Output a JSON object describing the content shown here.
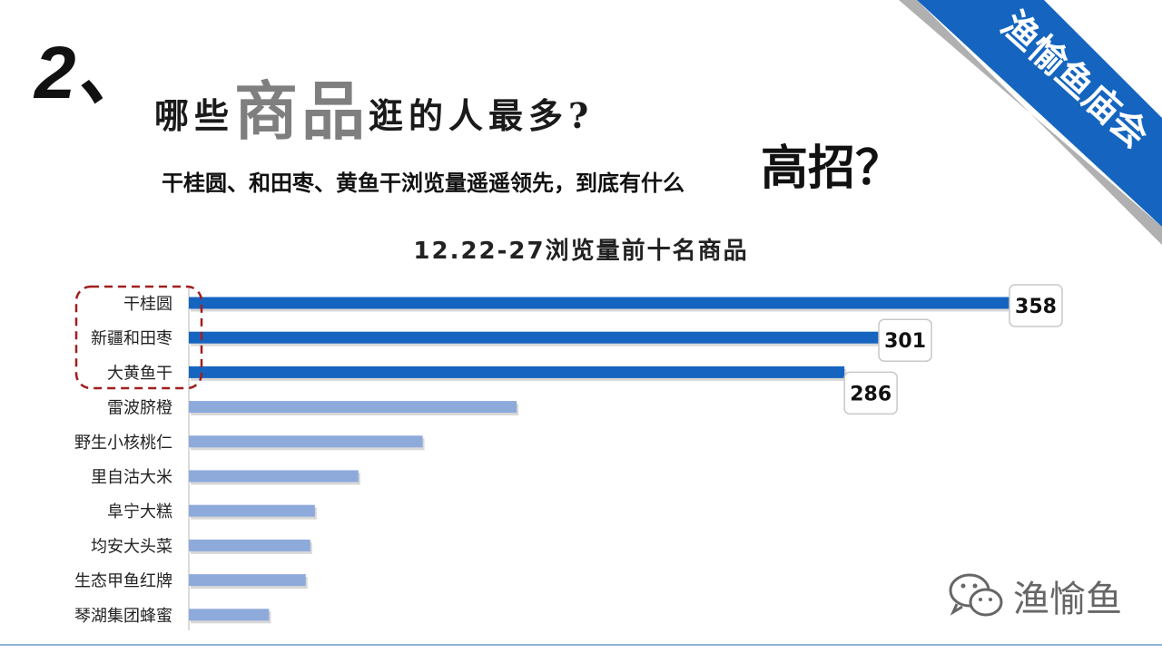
{
  "ribbon": {
    "text": "渔愉鱼庙会",
    "color": "#1565c0"
  },
  "title": {
    "number": "2、",
    "part1": "哪些",
    "emphasis": "商品",
    "part2": "逛的人最多?"
  },
  "subtitle": {
    "text": "干桂圆、和田枣、黄鱼干浏览量遥遥领先，到底有什么",
    "emphasis": "高招？"
  },
  "chart_data": {
    "type": "bar",
    "orientation": "horizontal",
    "title": "12.22-27浏览量前十名商品",
    "categories": [
      "干桂圆",
      "新疆和田枣",
      "大黄鱼干",
      "雷波脐橙",
      "野生小核桃仁",
      "里自沽大米",
      "阜宁大糕",
      "均安大头菜",
      "生态甲鱼红牌",
      "琴湖集团蜂蜜"
    ],
    "values": [
      358,
      301,
      286,
      143,
      102,
      74,
      55,
      53,
      51,
      35
    ],
    "data_labels": [
      "358",
      "301",
      "286",
      "",
      "",
      "",
      "",
      "",
      "",
      ""
    ],
    "highlight_count": 3,
    "colors": {
      "highlight": "#1565c0",
      "normal": "#8eaadb"
    },
    "xlim": [
      0,
      380
    ]
  },
  "watermark": {
    "text": "渔愉鱼",
    "icon": "wechat-icon"
  }
}
